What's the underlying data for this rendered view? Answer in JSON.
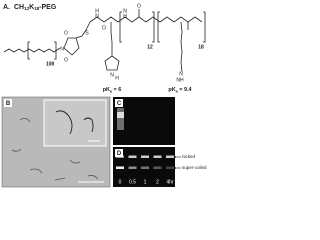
{
  "panel_a": {
    "label": "A.",
    "title": {
      "a": "CH",
      "b": "12",
      "c": "K",
      "d": "18",
      "e": "-PEG"
    },
    "repeat_peg": "108",
    "repeat_his": "12",
    "repeat_lys": "18",
    "pka_his": {
      "p": "pK",
      "sub": "a",
      "rest": " = 6"
    },
    "pka_lys": {
      "p": "pK",
      "sub": "a",
      "rest": " = 9.4"
    },
    "atoms": [
      "O",
      "N",
      "O",
      "S",
      "H",
      "N",
      "O",
      "N",
      "H",
      "N",
      "H",
      "O",
      "N",
      "NH"
    ]
  },
  "panel_b": {
    "label": "B"
  },
  "panel_c": {
    "label": "C"
  },
  "panel_d": {
    "label": "D",
    "lanes": [
      "0",
      "0.5",
      "1",
      "2",
      "4hr"
    ],
    "bands": [
      "nicked",
      "super-coiled"
    ]
  }
}
